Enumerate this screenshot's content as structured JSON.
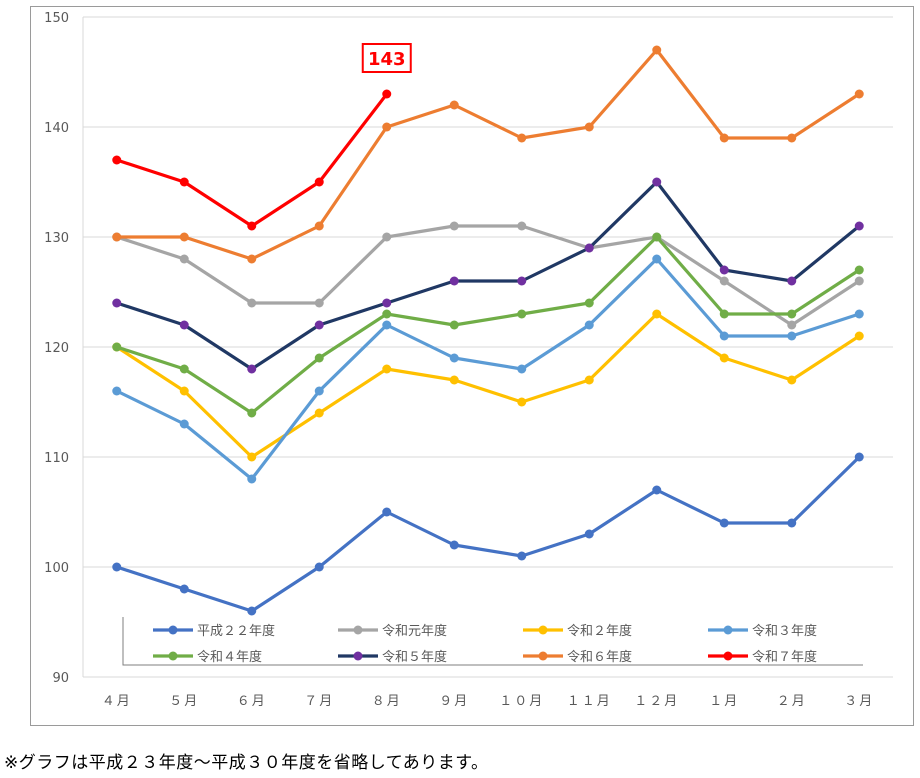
{
  "chart_data": {
    "type": "line",
    "title": "",
    "xlabel": "",
    "ylabel": "",
    "categories": [
      "４月",
      "５月",
      "６月",
      "７月",
      "８月",
      "９月",
      "１０月",
      "１１月",
      "１２月",
      "１月",
      "２月",
      "３月"
    ],
    "ylim": [
      90,
      150
    ],
    "yticks": [
      90,
      100,
      110,
      120,
      130,
      140,
      150
    ],
    "grid": true,
    "legend": "bottom-inside",
    "series": [
      {
        "name": "平成２２年度",
        "color": "#4472c4",
        "marker": "#4472c4",
        "values": [
          100,
          98,
          96,
          100,
          105,
          102,
          101,
          103,
          107,
          104,
          104,
          110
        ]
      },
      {
        "name": "令和元年度",
        "color": "#a5a5a5",
        "marker": "#a5a5a5",
        "values": [
          130,
          128,
          124,
          124,
          130,
          131,
          131,
          129,
          130,
          126,
          122,
          126
        ]
      },
      {
        "name": "令和２年度",
        "color": "#ffc000",
        "marker": "#ffc000",
        "values": [
          120,
          116,
          110,
          114,
          118,
          117,
          115,
          117,
          123,
          119,
          117,
          121
        ]
      },
      {
        "name": "令和３年度",
        "color": "#5b9bd5",
        "marker": "#5b9bd5",
        "values": [
          116,
          113,
          108,
          116,
          122,
          119,
          118,
          122,
          128,
          121,
          121,
          123
        ]
      },
      {
        "name": "令和４年度",
        "color": "#70ad47",
        "marker": "#70ad47",
        "values": [
          120,
          118,
          114,
          119,
          123,
          122,
          123,
          124,
          130,
          123,
          123,
          127
        ]
      },
      {
        "name": "令和５年度",
        "color": "#203864",
        "marker": "#7030a0",
        "values": [
          124,
          122,
          118,
          122,
          124,
          126,
          126,
          129,
          135,
          127,
          126,
          131
        ]
      },
      {
        "name": "令和６年度",
        "color": "#ed7d31",
        "marker": "#ed7d31",
        "values": [
          130,
          130,
          128,
          131,
          140,
          142,
          139,
          140,
          147,
          139,
          139,
          143
        ]
      },
      {
        "name": "令和７年度",
        "color": "#ff0000",
        "marker": "#ff0000",
        "values": [
          137,
          135,
          131,
          135,
          143,
          null,
          null,
          null,
          null,
          null,
          null,
          null
        ]
      }
    ],
    "annotation": {
      "text": "143",
      "series": 7,
      "index": 4
    }
  },
  "footnote": "※グラフは平成２３年度～平成３０年度を省略してあります。"
}
